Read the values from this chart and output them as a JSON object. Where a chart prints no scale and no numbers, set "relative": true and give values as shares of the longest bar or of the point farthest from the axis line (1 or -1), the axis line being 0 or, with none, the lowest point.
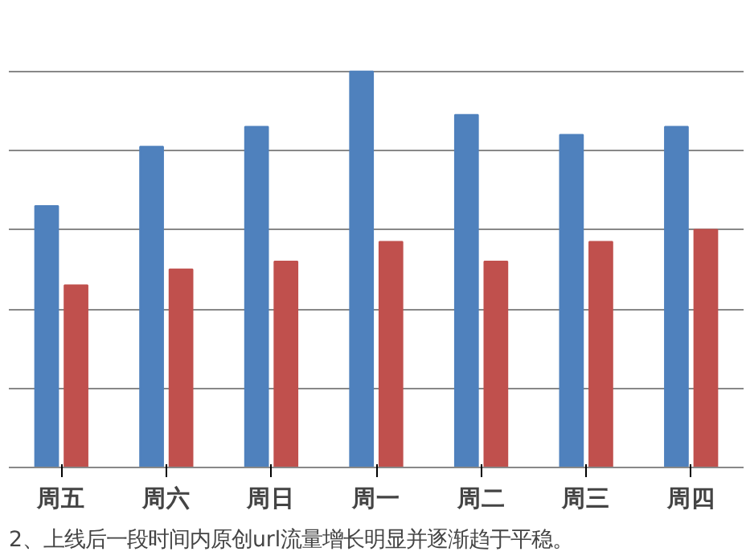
{
  "chart_data": {
    "type": "bar",
    "relative": true,
    "grid": "y",
    "categories": [
      "周五",
      "周六",
      "周日",
      "周一",
      "周二",
      "周三",
      "周四"
    ],
    "series": [
      {
        "color": "#4f81bd",
        "values": [
          0.66,
          0.81,
          0.86,
          1,
          0.89,
          0.84,
          0.86
        ]
      },
      {
        "color": "#c0504d",
        "values": [
          0.46,
          0.5,
          0.52,
          0.57,
          0.52,
          0.57,
          0.6
        ]
      }
    ],
    "annotations": [
      "2、上线后一段时间内原创url流量增长明显并逐渐趋于平稳。"
    ]
  }
}
